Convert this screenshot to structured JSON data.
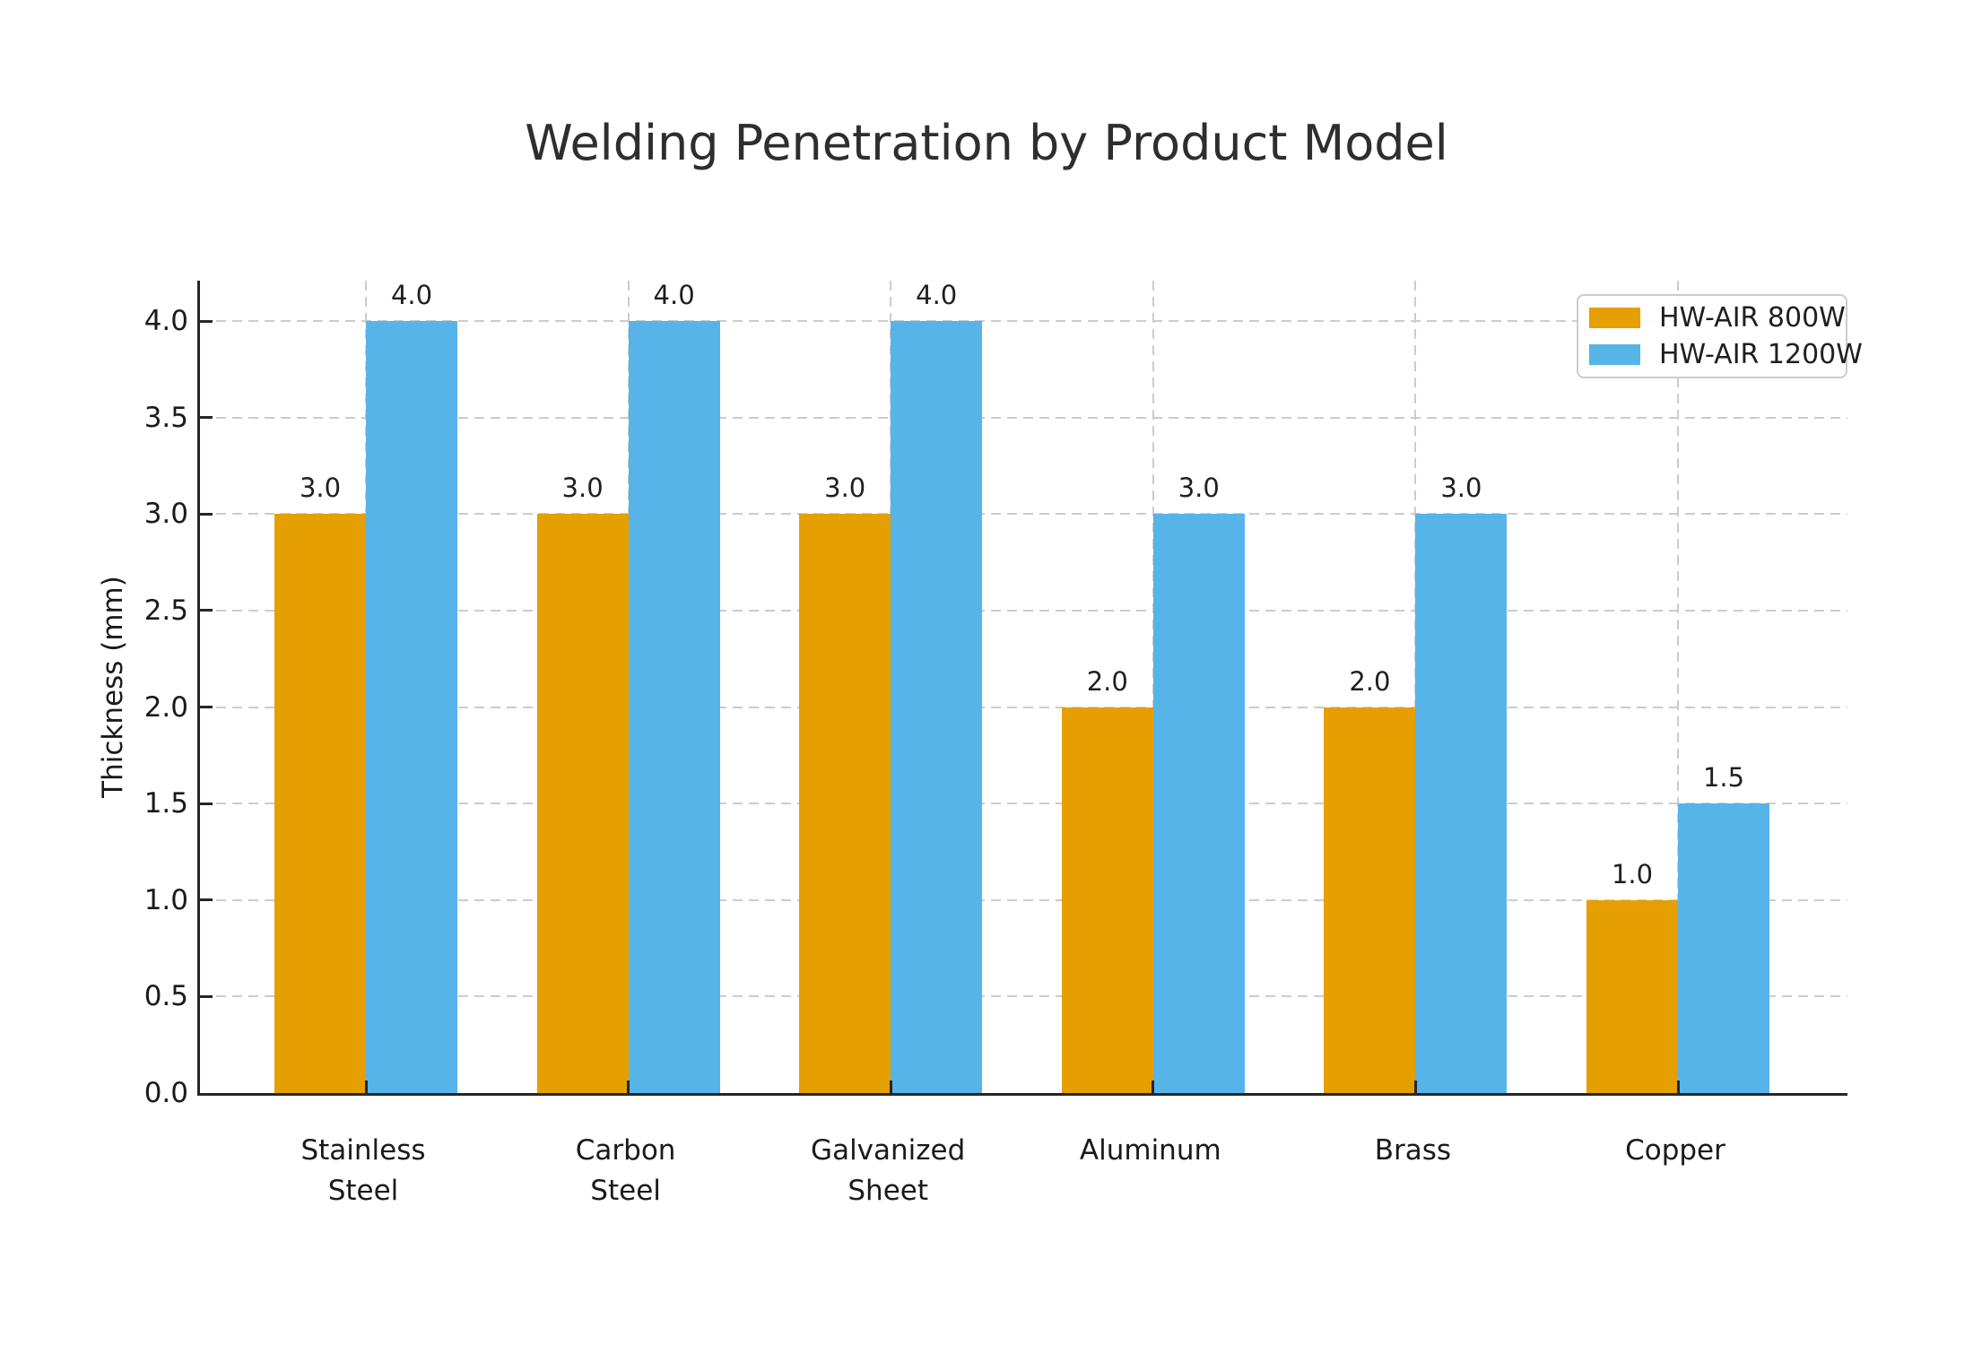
{
  "chart_data": {
    "type": "bar",
    "title": "Welding Penetration by Product Model",
    "xlabel": "",
    "ylabel": "Thickness (mm)",
    "categories": [
      "Stainless Steel",
      "Carbon Steel",
      "Galvanized Sheet",
      "Aluminum",
      "Brass",
      "Copper"
    ],
    "category_label_lines": [
      [
        "Stainless",
        "Steel"
      ],
      [
        "Carbon",
        "Steel"
      ],
      [
        "Galvanized",
        "Sheet"
      ],
      [
        "Aluminum"
      ],
      [
        "Brass"
      ],
      [
        "Copper"
      ]
    ],
    "series": [
      {
        "name": "HW-AIR 800W",
        "color": "#E69F00",
        "values": [
          3.0,
          3.0,
          3.0,
          2.0,
          2.0,
          1.0
        ],
        "value_labels": [
          "3.0",
          "3.0",
          "3.0",
          "2.0",
          "2.0",
          "1.0"
        ]
      },
      {
        "name": "HW-AIR 1200W",
        "color": "#56B4E9",
        "values": [
          4.0,
          4.0,
          4.0,
          3.0,
          3.0,
          1.5
        ],
        "value_labels": [
          "4.0",
          "4.0",
          "4.0",
          "3.0",
          "3.0",
          "1.5"
        ]
      }
    ],
    "yticks": [
      0.0,
      0.5,
      1.0,
      1.5,
      2.0,
      2.5,
      3.0,
      3.5,
      4.0
    ],
    "ytick_labels": [
      "0.0",
      "0.5",
      "1.0",
      "1.5",
      "2.0",
      "2.5",
      "3.0",
      "3.5",
      "4.0"
    ],
    "ylim": [
      0,
      4.21
    ],
    "grid": true,
    "grid_style": "dashed",
    "legend": {
      "position": "upper right"
    },
    "colors": {
      "series_800w": "#E69F00",
      "series_1200w": "#56B4E9",
      "grid": "#cccccc",
      "spine": "#262626",
      "text": "#1f1f1f",
      "background": "#ffffff"
    }
  }
}
